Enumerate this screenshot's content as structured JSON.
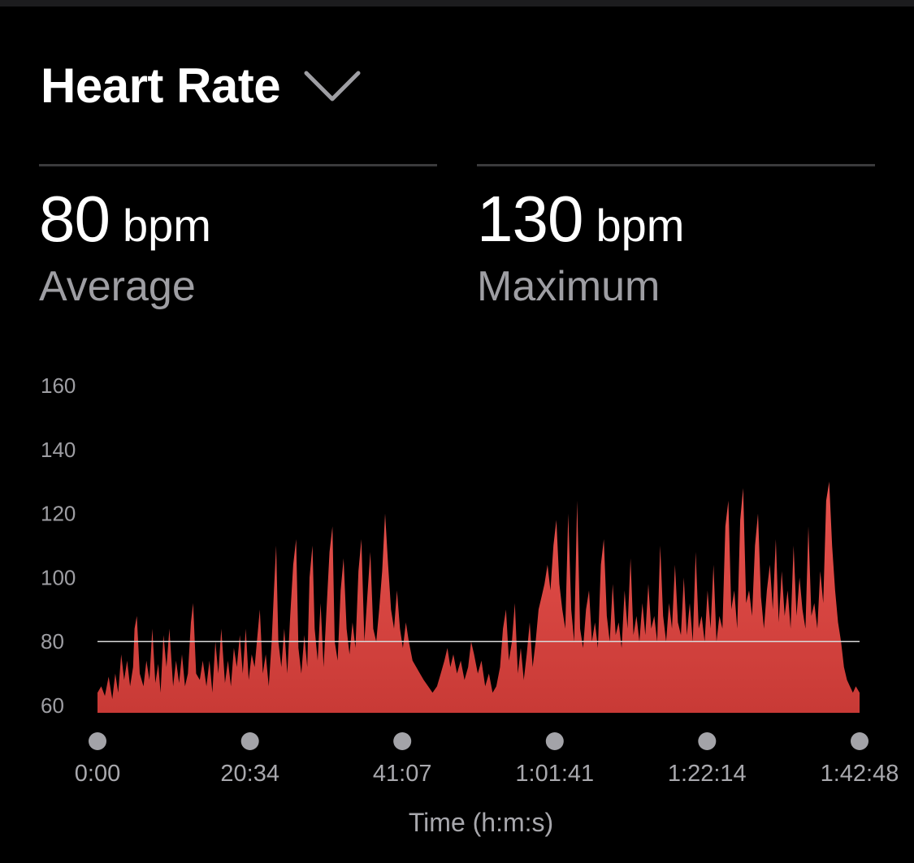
{
  "header": {
    "title": "Heart Rate",
    "dropdown_icon": "chevron-down-icon"
  },
  "stats": {
    "average": {
      "value": "80",
      "unit": "bpm",
      "label": "Average"
    },
    "maximum": {
      "value": "130",
      "unit": "bpm",
      "label": "Maximum"
    }
  },
  "colors": {
    "background": "#000000",
    "accent": "#e8524d",
    "accent_dark": "#c83a36",
    "reference_line": "#d9d9d9",
    "muted_text": "#9e9ea3"
  },
  "chart_data": {
    "type": "area",
    "title": "",
    "xlabel": "Time (h:m:s)",
    "ylabel": "",
    "ylim": [
      60,
      160
    ],
    "yticks": [
      160,
      140,
      120,
      100,
      80,
      60
    ],
    "xlim": [
      0,
      102.8
    ],
    "xticks": [
      {
        "label": "0:00",
        "value": 0
      },
      {
        "label": "20:34",
        "value": 20.57
      },
      {
        "label": "41:07",
        "value": 41.12
      },
      {
        "label": "1:01:41",
        "value": 61.68
      },
      {
        "label": "1:22:14",
        "value": 82.23
      },
      {
        "label": "1:42:48",
        "value": 102.8
      }
    ],
    "reference_line": {
      "y": 80,
      "label": "Average"
    },
    "series": [
      {
        "x_unit": "minutes",
        "points": [
          [
            0.0,
            64
          ],
          [
            0.5,
            66
          ],
          [
            1.0,
            63
          ],
          [
            1.5,
            69
          ],
          [
            2.0,
            62
          ],
          [
            2.4,
            70
          ],
          [
            2.8,
            64
          ],
          [
            3.2,
            76
          ],
          [
            3.6,
            68
          ],
          [
            4.0,
            74
          ],
          [
            4.4,
            66
          ],
          [
            4.8,
            72
          ],
          [
            5.0,
            84
          ],
          [
            5.3,
            88
          ],
          [
            5.7,
            70
          ],
          [
            6.2,
            66
          ],
          [
            6.6,
            74
          ],
          [
            7.0,
            68
          ],
          [
            7.4,
            84
          ],
          [
            7.8,
            67
          ],
          [
            8.2,
            73
          ],
          [
            8.5,
            64
          ],
          [
            8.9,
            82
          ],
          [
            9.3,
            72
          ],
          [
            9.7,
            84
          ],
          [
            10.2,
            66
          ],
          [
            10.6,
            74
          ],
          [
            11.0,
            67
          ],
          [
            11.4,
            76
          ],
          [
            11.8,
            66
          ],
          [
            12.2,
            70
          ],
          [
            12.6,
            86
          ],
          [
            12.9,
            92
          ],
          [
            13.3,
            70
          ],
          [
            13.8,
            68
          ],
          [
            14.2,
            74
          ],
          [
            14.7,
            66
          ],
          [
            15.1,
            74
          ],
          [
            15.5,
            64
          ],
          [
            15.9,
            80
          ],
          [
            16.3,
            70
          ],
          [
            16.7,
            84
          ],
          [
            17.2,
            67
          ],
          [
            17.6,
            74
          ],
          [
            18.0,
            66
          ],
          [
            18.4,
            78
          ],
          [
            18.8,
            72
          ],
          [
            19.2,
            82
          ],
          [
            19.6,
            70
          ],
          [
            20.0,
            84
          ],
          [
            20.4,
            68
          ],
          [
            20.8,
            76
          ],
          [
            21.2,
            72
          ],
          [
            21.5,
            80
          ],
          [
            21.9,
            90
          ],
          [
            22.3,
            70
          ],
          [
            22.7,
            76
          ],
          [
            23.1,
            66
          ],
          [
            23.5,
            80
          ],
          [
            23.8,
            96
          ],
          [
            24.1,
            110
          ],
          [
            24.4,
            80
          ],
          [
            24.8,
            72
          ],
          [
            25.2,
            84
          ],
          [
            25.6,
            70
          ],
          [
            26.0,
            88
          ],
          [
            26.4,
            104
          ],
          [
            26.8,
            112
          ],
          [
            27.1,
            78
          ],
          [
            27.5,
            70
          ],
          [
            27.9,
            82
          ],
          [
            28.3,
            72
          ],
          [
            28.6,
            100
          ],
          [
            29.0,
            110
          ],
          [
            29.3,
            84
          ],
          [
            29.7,
            74
          ],
          [
            30.1,
            92
          ],
          [
            30.5,
            72
          ],
          [
            30.9,
            90
          ],
          [
            31.3,
            108
          ],
          [
            31.7,
            116
          ],
          [
            32.0,
            80
          ],
          [
            32.4,
            74
          ],
          [
            32.8,
            96
          ],
          [
            33.2,
            106
          ],
          [
            33.6,
            84
          ],
          [
            34.0,
            76
          ],
          [
            34.4,
            86
          ],
          [
            34.8,
            78
          ],
          [
            35.2,
            102
          ],
          [
            35.6,
            112
          ],
          [
            36.0,
            80
          ],
          [
            36.4,
            94
          ],
          [
            36.8,
            108
          ],
          [
            37.2,
            84
          ],
          [
            37.6,
            80
          ],
          [
            38.0,
            90
          ],
          [
            38.4,
            102
          ],
          [
            38.8,
            120
          ],
          [
            39.2,
            104
          ],
          [
            39.6,
            90
          ],
          [
            40.0,
            84
          ],
          [
            40.4,
            96
          ],
          [
            40.8,
            84
          ],
          [
            41.2,
            78
          ],
          [
            41.6,
            86
          ],
          [
            42.0,
            80
          ],
          [
            42.5,
            74
          ],
          [
            43.0,
            72
          ],
          [
            43.5,
            70
          ],
          [
            44.0,
            68
          ],
          [
            44.6,
            66
          ],
          [
            45.2,
            64
          ],
          [
            45.8,
            66
          ],
          [
            46.3,
            70
          ],
          [
            46.8,
            74
          ],
          [
            47.2,
            78
          ],
          [
            47.6,
            72
          ],
          [
            48.0,
            76
          ],
          [
            48.5,
            70
          ],
          [
            49.0,
            74
          ],
          [
            49.5,
            68
          ],
          [
            50.0,
            72
          ],
          [
            50.4,
            80
          ],
          [
            50.8,
            76
          ],
          [
            51.3,
            70
          ],
          [
            51.8,
            74
          ],
          [
            52.3,
            66
          ],
          [
            52.8,
            70
          ],
          [
            53.3,
            64
          ],
          [
            53.8,
            66
          ],
          [
            54.3,
            72
          ],
          [
            54.7,
            84
          ],
          [
            55.1,
            90
          ],
          [
            55.5,
            74
          ],
          [
            55.9,
            80
          ],
          [
            56.3,
            92
          ],
          [
            56.7,
            70
          ],
          [
            57.1,
            78
          ],
          [
            57.5,
            68
          ],
          [
            57.9,
            76
          ],
          [
            58.3,
            86
          ],
          [
            58.7,
            72
          ],
          [
            59.1,
            80
          ],
          [
            59.5,
            90
          ],
          [
            59.9,
            94
          ],
          [
            60.3,
            98
          ],
          [
            60.7,
            104
          ],
          [
            61.1,
            96
          ],
          [
            61.5,
            110
          ],
          [
            61.9,
            118
          ],
          [
            62.3,
            98
          ],
          [
            62.7,
            90
          ],
          [
            63.1,
            84
          ],
          [
            63.5,
            120
          ],
          [
            63.9,
            90
          ],
          [
            64.3,
            80
          ],
          [
            64.7,
            124
          ],
          [
            65.1,
            84
          ],
          [
            65.5,
            78
          ],
          [
            65.9,
            90
          ],
          [
            66.3,
            96
          ],
          [
            66.7,
            80
          ],
          [
            67.1,
            86
          ],
          [
            67.5,
            78
          ],
          [
            67.9,
            104
          ],
          [
            68.3,
            112
          ],
          [
            68.7,
            88
          ],
          [
            69.1,
            80
          ],
          [
            69.5,
            98
          ],
          [
            69.9,
            82
          ],
          [
            70.3,
            86
          ],
          [
            70.7,
            78
          ],
          [
            71.1,
            96
          ],
          [
            71.5,
            84
          ],
          [
            71.9,
            106
          ],
          [
            72.3,
            82
          ],
          [
            72.7,
            88
          ],
          [
            73.1,
            80
          ],
          [
            73.5,
            92
          ],
          [
            73.9,
            82
          ],
          [
            74.3,
            98
          ],
          [
            74.7,
            84
          ],
          [
            75.1,
            88
          ],
          [
            75.5,
            80
          ],
          [
            75.9,
            110
          ],
          [
            76.3,
            88
          ],
          [
            76.7,
            80
          ],
          [
            77.1,
            92
          ],
          [
            77.5,
            84
          ],
          [
            77.9,
            104
          ],
          [
            78.3,
            86
          ],
          [
            78.7,
            82
          ],
          [
            79.1,
            100
          ],
          [
            79.5,
            82
          ],
          [
            79.9,
            92
          ],
          [
            80.3,
            80
          ],
          [
            80.7,
            108
          ],
          [
            81.1,
            84
          ],
          [
            81.5,
            88
          ],
          [
            81.9,
            80
          ],
          [
            82.3,
            96
          ],
          [
            82.7,
            84
          ],
          [
            83.1,
            104
          ],
          [
            83.5,
            80
          ],
          [
            83.9,
            88
          ],
          [
            84.3,
            84
          ],
          [
            84.7,
            116
          ],
          [
            85.1,
            124
          ],
          [
            85.5,
            90
          ],
          [
            85.9,
            96
          ],
          [
            86.3,
            84
          ],
          [
            86.7,
            118
          ],
          [
            87.1,
            128
          ],
          [
            87.5,
            92
          ],
          [
            87.9,
            96
          ],
          [
            88.3,
            88
          ],
          [
            88.7,
            110
          ],
          [
            89.1,
            120
          ],
          [
            89.5,
            94
          ],
          [
            89.9,
            84
          ],
          [
            90.3,
            96
          ],
          [
            90.7,
            104
          ],
          [
            91.1,
            90
          ],
          [
            91.5,
            112
          ],
          [
            91.9,
            86
          ],
          [
            92.3,
            102
          ],
          [
            92.7,
            88
          ],
          [
            93.1,
            96
          ],
          [
            93.5,
            84
          ],
          [
            93.9,
            110
          ],
          [
            94.3,
            88
          ],
          [
            94.7,
            100
          ],
          [
            95.1,
            90
          ],
          [
            95.5,
            84
          ],
          [
            95.9,
            116
          ],
          [
            96.3,
            88
          ],
          [
            96.7,
            92
          ],
          [
            97.1,
            84
          ],
          [
            97.5,
            102
          ],
          [
            97.9,
            92
          ],
          [
            98.3,
            124
          ],
          [
            98.7,
            130
          ],
          [
            99.1,
            110
          ],
          [
            99.5,
            96
          ],
          [
            99.9,
            86
          ],
          [
            100.3,
            80
          ],
          [
            100.7,
            72
          ],
          [
            101.1,
            68
          ],
          [
            101.5,
            66
          ],
          [
            101.9,
            64
          ],
          [
            102.3,
            66
          ],
          [
            102.8,
            64
          ]
        ]
      }
    ]
  }
}
